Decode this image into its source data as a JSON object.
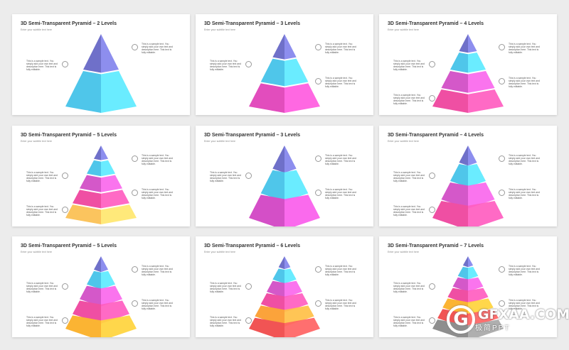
{
  "subtitle": "Enter your subtitle text here",
  "note_text": "This is a sample text. You simply add your own text and description here. This text is fully editable.",
  "slides": [
    {
      "title": "3D Semi-Transparent Pyramid – 2 Levels",
      "colors": [
        "#6f70c9",
        "#4fc6ea"
      ]
    },
    {
      "title": "3D Semi-Transparent Pyramid – 3 Levels",
      "colors": [
        "#6f70c9",
        "#4fc6ea",
        "#e24dbd"
      ]
    },
    {
      "title": "3D Semi-Transparent Pyramid – 4 Levels",
      "colors": [
        "#6f70c9",
        "#4fc6ea",
        "#d458c9",
        "#ef4fa3"
      ]
    },
    {
      "title": "3D Semi-Transparent Pyramid – 5 Levels",
      "colors": [
        "#6f70c9",
        "#4fc6ea",
        "#d458c9",
        "#ef4fa3",
        "#fbc45e"
      ]
    },
    {
      "title": "3D Semi-Transparent Pyramid – 3 Levels",
      "colors": [
        "#6f70c9",
        "#4fc6ea",
        "#d44fc7"
      ]
    },
    {
      "title": "3D Semi-Transparent Pyramid – 4 Levels",
      "colors": [
        "#6f70c9",
        "#4fc6ea",
        "#d458c9",
        "#ef4fa3"
      ]
    },
    {
      "title": "3D Semi-Transparent Pyramid – 5 Levels",
      "colors": [
        "#6f70c9",
        "#4fc6ea",
        "#d458c9",
        "#ef4fa3",
        "#fbb433"
      ]
    },
    {
      "title": "3D Semi-Transparent Pyramid – 6 Levels",
      "colors": [
        "#6f70c9",
        "#4fc6ea",
        "#d458c9",
        "#ef4fa3",
        "#fba33b",
        "#f15454"
      ]
    },
    {
      "title": "3D Semi-Transparent Pyramid – 7 Levels",
      "colors": [
        "#6f70c9",
        "#4fc6ea",
        "#d458c9",
        "#ef4fa3",
        "#fbb433",
        "#f15454",
        "#8e8e8e"
      ]
    }
  ],
  "watermark": {
    "letter": "G",
    "text": "GFXAA.COM",
    "sub": "极简PPT"
  }
}
